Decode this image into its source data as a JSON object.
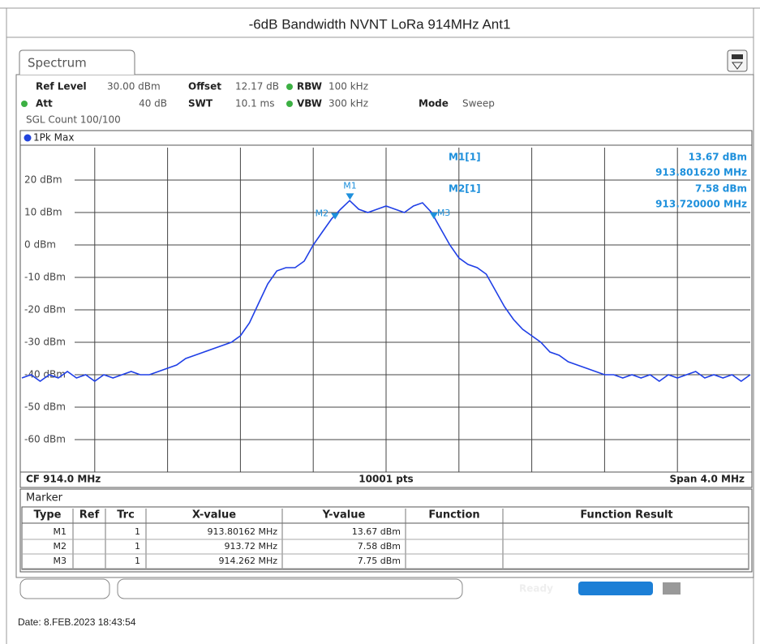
{
  "title": "-6dB Bandwidth NVNT LoRa 914MHz Ant1",
  "tab": "Spectrum",
  "settings": {
    "row1": [
      [
        "Ref Level",
        "30.00 dBm"
      ],
      [
        "Offset",
        "12.17 dB"
      ],
      [
        "RBW",
        "100 kHz"
      ]
    ],
    "row2": [
      [
        "Att",
        "40 dB"
      ],
      [
        "SWT",
        "10.1 ms"
      ],
      [
        "VBW",
        "300 kHz"
      ],
      [
        "Mode",
        "Sweep"
      ]
    ],
    "sgl": "SGL Count 100/100"
  },
  "trace_label": "1Pk Max",
  "chart_data": {
    "type": "line",
    "color": "#1f3fe6",
    "marker_color": "#1e90dc",
    "xlim": [
      912,
      916
    ],
    "ylim": [
      -70,
      30
    ],
    "grid": true,
    "yticks": [
      {
        "value": 20,
        "label": "20 dBm"
      },
      {
        "value": 10,
        "label": "10 dBm"
      },
      {
        "value": 0,
        "label": "0 dBm"
      },
      {
        "value": -10,
        "label": "-10 dBm"
      },
      {
        "value": -20,
        "label": "-20 dBm"
      },
      {
        "value": -30,
        "label": "-30 dBm"
      },
      {
        "value": -40,
        "label": "-40 dBm"
      },
      {
        "value": -50,
        "label": "-50 dBm"
      },
      {
        "value": -60,
        "label": "-60 dBm"
      }
    ],
    "x": [
      912.0,
      912.05,
      912.1,
      912.15,
      912.2,
      912.25,
      912.3,
      912.35,
      912.4,
      912.45,
      912.5,
      912.55,
      912.6,
      912.65,
      912.7,
      912.75,
      912.8,
      912.85,
      912.9,
      912.95,
      913.0,
      913.05,
      913.1,
      913.15,
      913.2,
      913.25,
      913.3,
      913.35,
      913.4,
      913.45,
      913.5,
      913.55,
      913.6,
      913.65,
      913.7,
      913.75,
      913.8,
      913.85,
      913.9,
      913.95,
      914.0,
      914.05,
      914.1,
      914.15,
      914.2,
      914.25,
      914.3,
      914.35,
      914.4,
      914.45,
      914.5,
      914.55,
      914.6,
      914.65,
      914.7,
      914.75,
      914.8,
      914.85,
      914.9,
      914.95,
      915.0,
      915.05,
      915.1,
      915.15,
      915.2,
      915.25,
      915.3,
      915.35,
      915.4,
      915.45,
      915.5,
      915.55,
      915.6,
      915.65,
      915.7,
      915.75,
      915.8,
      915.85,
      915.9,
      915.95,
      916.0
    ],
    "values": [
      -41,
      -40,
      -42,
      -40,
      -41,
      -39,
      -41,
      -40,
      -42,
      -40,
      -41,
      -40,
      -39,
      -40,
      -40,
      -39,
      -38,
      -37,
      -35,
      -34,
      -33,
      -32,
      -31,
      -30,
      -28,
      -24,
      -18,
      -12,
      -8,
      -7,
      -7,
      -5,
      0,
      4,
      8,
      11,
      13.67,
      11,
      10,
      11,
      12,
      11,
      10,
      12,
      13,
      10,
      5,
      0,
      -4,
      -6,
      -7,
      -9,
      -14,
      -19,
      -23,
      -26,
      -28,
      -30,
      -33,
      -34,
      -36,
      -37,
      -38,
      -39,
      -40,
      -40,
      -41,
      -40,
      -41,
      -40,
      -42,
      -40,
      -41,
      -40,
      -39,
      -41,
      -40,
      -41,
      -40,
      -42,
      -40
    ],
    "markers": [
      {
        "name": "M1",
        "x": 913.80162,
        "y": 13.67
      },
      {
        "name": "M2",
        "x": 913.72,
        "y": 7.58
      },
      {
        "name": "M3",
        "x": 914.262,
        "y": 7.75
      }
    ],
    "readouts": [
      {
        "label": "M1[1]",
        "y": "13.67 dBm",
        "x": "913.801620 MHz"
      },
      {
        "label": "M2[1]",
        "y": "7.58 dBm",
        "x": "913.720000 MHz"
      }
    ],
    "footer": [
      "CF 914.0 MHz",
      "10001 pts",
      "Span 4.0 MHz"
    ]
  },
  "marker_table": {
    "title": "Marker",
    "headers": [
      "Type",
      "Ref",
      "Trc",
      "X-value",
      "Y-value",
      "Function",
      "Function Result"
    ],
    "rows": [
      {
        "type": "M1",
        "trc": "1",
        "x": "913.80162 MHz",
        "y": "13.67 dBm"
      },
      {
        "type": "M2",
        "trc": "1",
        "x": "913.72 MHz",
        "y": "7.58 dBm"
      },
      {
        "type": "M3",
        "trc": "1",
        "x": "914.262 MHz",
        "y": "7.75 dBm"
      }
    ]
  },
  "status": "Ready",
  "date": "Date: 8.FEB.2023  18:43:54"
}
